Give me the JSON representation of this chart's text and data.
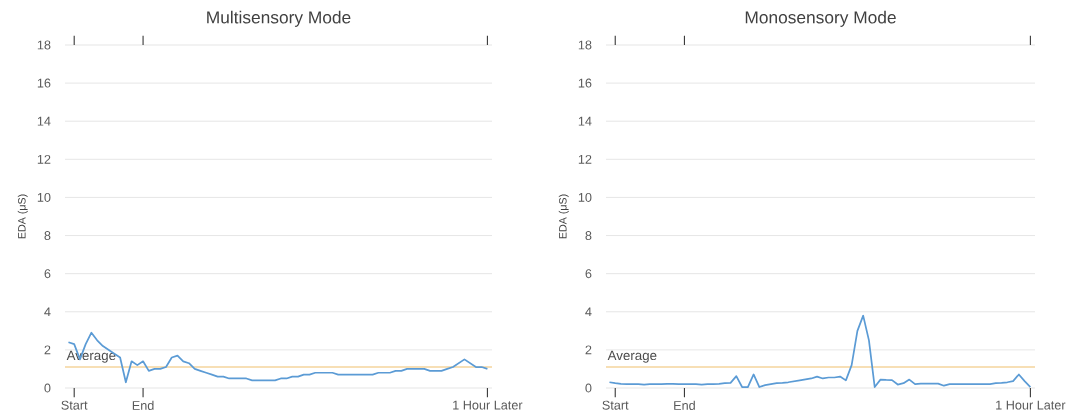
{
  "chart_data": [
    {
      "type": "line",
      "title": "Multisensory Mode",
      "ylabel": "EDA (μS)",
      "color": "#5b9bd5",
      "grid": "y",
      "ylim": [
        0,
        18
      ],
      "yticks": [
        0,
        2,
        4,
        6,
        8,
        10,
        12,
        14,
        16,
        18
      ],
      "ref_lines": [
        {
          "axis": "y",
          "value": 1.1,
          "label": "Average",
          "color": "#f5d49c"
        }
      ],
      "categories": [
        null,
        "Start",
        null,
        null,
        null,
        null,
        null,
        null,
        null,
        null,
        null,
        null,
        null,
        "End",
        null,
        null,
        null,
        null,
        null,
        null,
        null,
        null,
        null,
        null,
        null,
        null,
        null,
        null,
        null,
        null,
        null,
        null,
        null,
        null,
        null,
        null,
        null,
        null,
        null,
        null,
        null,
        null,
        null,
        null,
        null,
        null,
        null,
        null,
        null,
        null,
        null,
        null,
        null,
        null,
        null,
        null,
        null,
        null,
        null,
        null,
        null,
        null,
        null,
        null,
        null,
        null,
        null,
        null,
        null,
        null,
        null,
        null,
        null,
        "1 Hour Later"
      ],
      "values": [
        2.4,
        2.3,
        1.5,
        2.3,
        2.9,
        2.5,
        2.2,
        2.0,
        1.8,
        1.6,
        0.3,
        1.4,
        1.2,
        1.4,
        0.9,
        1.0,
        1.0,
        1.1,
        1.6,
        1.7,
        1.4,
        1.3,
        1.0,
        0.9,
        0.8,
        0.7,
        0.6,
        0.6,
        0.5,
        0.5,
        0.5,
        0.5,
        0.4,
        0.4,
        0.4,
        0.4,
        0.4,
        0.5,
        0.5,
        0.6,
        0.6,
        0.7,
        0.7,
        0.8,
        0.8,
        0.8,
        0.8,
        0.7,
        0.7,
        0.7,
        0.7,
        0.7,
        0.7,
        0.7,
        0.8,
        0.8,
        0.8,
        0.9,
        0.9,
        1.0,
        1.0,
        1.0,
        1.0,
        0.9,
        0.9,
        0.9,
        1.0,
        1.1,
        1.3,
        1.5,
        1.3,
        1.1,
        1.1,
        1.0
      ]
    },
    {
      "type": "line",
      "title": "Monosensory Mode",
      "ylabel": "EDA (μS)",
      "color": "#5b9bd5",
      "grid": "y",
      "ylim": [
        0,
        18
      ],
      "yticks": [
        0,
        2,
        4,
        6,
        8,
        10,
        12,
        14,
        16,
        18
      ],
      "ref_lines": [
        {
          "axis": "y",
          "value": 1.1,
          "label": "Average",
          "color": "#f5d49c"
        }
      ],
      "categories": [
        null,
        "Start",
        null,
        null,
        null,
        null,
        null,
        null,
        null,
        null,
        null,
        null,
        null,
        "End",
        null,
        null,
        null,
        null,
        null,
        null,
        null,
        null,
        null,
        null,
        null,
        null,
        null,
        null,
        null,
        null,
        null,
        null,
        null,
        null,
        null,
        null,
        null,
        null,
        null,
        null,
        null,
        null,
        null,
        null,
        null,
        null,
        null,
        null,
        null,
        null,
        null,
        null,
        null,
        null,
        null,
        null,
        null,
        null,
        null,
        null,
        null,
        null,
        null,
        null,
        null,
        null,
        null,
        null,
        null,
        null,
        null,
        null,
        null,
        "1 Hour Later"
      ],
      "values": [
        0.3,
        0.25,
        0.22,
        0.2,
        0.2,
        0.2,
        0.18,
        0.2,
        0.2,
        0.2,
        0.22,
        0.22,
        0.2,
        0.2,
        0.2,
        0.2,
        0.18,
        0.2,
        0.2,
        0.22,
        0.25,
        0.27,
        0.62,
        0.05,
        0.05,
        0.71,
        0.05,
        0.15,
        0.2,
        0.25,
        0.27,
        0.3,
        0.35,
        0.4,
        0.45,
        0.5,
        0.6,
        0.5,
        0.55,
        0.55,
        0.6,
        0.4,
        1.2,
        3.0,
        3.8,
        2.5,
        0.05,
        0.44,
        0.42,
        0.41,
        0.18,
        0.25,
        0.44,
        0.2,
        0.23,
        0.23,
        0.23,
        0.23,
        0.12,
        0.2,
        0.2,
        0.2,
        0.2,
        0.2,
        0.2,
        0.2,
        0.2,
        0.25,
        0.27,
        0.3,
        0.36,
        0.71,
        0.36,
        0.05
      ]
    }
  ]
}
